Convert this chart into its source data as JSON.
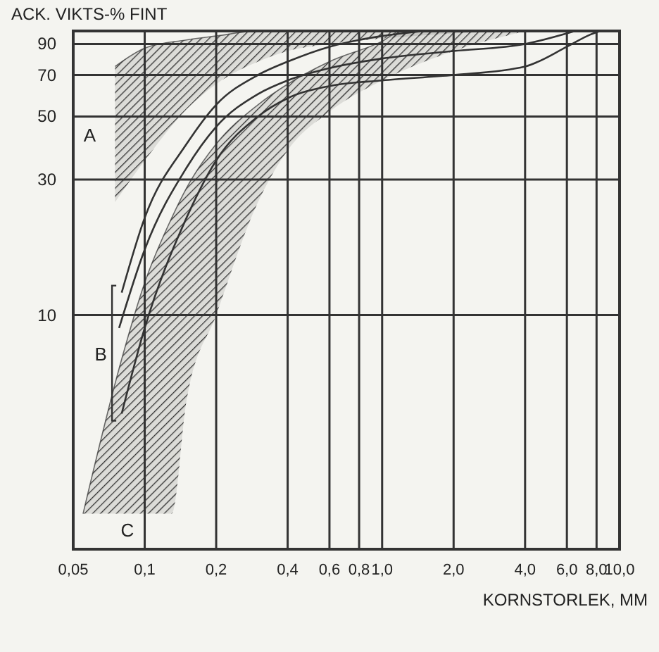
{
  "chart_data": {
    "type": "line",
    "xlabel": "KORNSTORLEK, MM",
    "ylabel": "ACK. VIKTS-% FINT",
    "log": "xy",
    "grid": true,
    "xlim": [
      0.05,
      10
    ],
    "ylim": [
      1.5,
      100
    ],
    "xticks": [
      {
        "value": 0.05,
        "label": "0,05"
      },
      {
        "value": 0.1,
        "label": "0,1"
      },
      {
        "value": 0.2,
        "label": "0,2"
      },
      {
        "value": 0.4,
        "label": "0,4"
      },
      {
        "value": 0.6,
        "label": "0,6"
      },
      {
        "value": 0.8,
        "label": "0,8"
      },
      {
        "value": 1,
        "label": "1,0"
      },
      {
        "value": 2,
        "label": "2,0"
      },
      {
        "value": 4,
        "label": "4,0"
      },
      {
        "value": 6,
        "label": "6,0"
      },
      {
        "value": 8,
        "label": "8,0"
      },
      {
        "value": 10,
        "label": "10,0"
      }
    ],
    "yticks": [
      10,
      30,
      50,
      70,
      90
    ],
    "series": [
      {
        "type": "line",
        "color": "#333333",
        "x": [
          0.075,
          0.1,
          0.15,
          0.2,
          0.3,
          0.4,
          0.6,
          1,
          2,
          3.8
        ],
        "values": [
          75,
          87,
          93,
          96,
          100,
          100,
          100,
          100,
          100,
          100
        ],
        "upper": [
          75,
          87,
          93,
          96,
          100,
          100,
          100,
          100,
          100,
          100
        ],
        "lower": [
          25,
          35,
          53,
          65,
          78,
          85,
          90,
          94,
          98,
          100
        ]
      },
      {
        "type": "line",
        "color": "#333333",
        "x": [
          0.055,
          0.08,
          0.1,
          0.13,
          0.15,
          0.2,
          0.3,
          0.4,
          0.6,
          1,
          1.2,
          2,
          4
        ],
        "values": [
          2,
          7,
          13,
          22,
          28,
          40,
          55,
          65,
          78,
          92,
          100,
          100,
          100
        ],
        "upper": [
          2,
          7,
          13,
          22,
          28,
          40,
          55,
          65,
          78,
          92,
          100,
          100,
          100
        ],
        "lower": [
          2,
          2,
          2,
          2,
          5,
          10,
          25,
          38,
          52,
          67,
          72,
          85,
          100
        ]
      },
      {
        "type": "line",
        "color": "#333333",
        "x": [
          0.08,
          0.1,
          0.15,
          0.2,
          0.3,
          0.4,
          0.6,
          0.8,
          1,
          1.5
        ],
        "values": [
          12,
          22,
          40,
          55,
          70,
          78,
          88,
          93,
          96,
          100
        ]
      },
      {
        "type": "line",
        "color": "#333333",
        "x": [
          0.078,
          0.1,
          0.15,
          0.2,
          0.3,
          0.4,
          0.6,
          1,
          2,
          4,
          6.5
        ],
        "values": [
          9,
          17,
          33,
          46,
          60,
          67,
          74,
          80,
          85,
          90,
          100
        ]
      },
      {
        "color": "#333333",
        "x": [
          0.08,
          0.1,
          0.15,
          0.2,
          0.3,
          0.4,
          0.6,
          1,
          2,
          4,
          6,
          7.5,
          8.3
        ],
        "values": [
          4.5,
          9,
          22,
          35,
          50,
          58,
          64,
          67,
          70,
          75,
          88,
          97,
          100
        ]
      }
    ],
    "annotations": [
      "A",
      "B",
      "C"
    ]
  }
}
